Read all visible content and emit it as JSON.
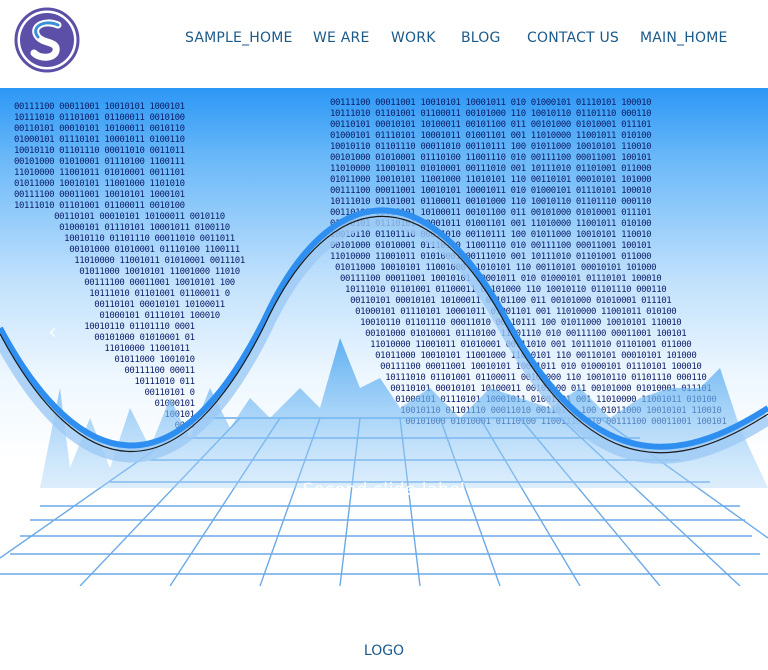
{
  "header": {
    "logo_icon": "s-circle-logo-icon",
    "nav": [
      {
        "label": "SAMPLE_HOME"
      },
      {
        "label": "WE ARE"
      },
      {
        "label": "WORK"
      },
      {
        "label": "BLOG"
      },
      {
        "label": "CONTACT US"
      },
      {
        "label": "MAIN_HOME"
      }
    ]
  },
  "carousel": {
    "prev_icon": "chevron-left-icon",
    "slide_label": "Second slide label",
    "slide_caption": "",
    "binary_rows": [
      "00111100 00011001 10010101 10001011 010",
      "10111010 01101001 01100011 00101000 110",
      "00110101 00010101 10100011 00101100 011",
      "01000101 01110101 10001011 01001101 001",
      "10010110 01101110 00011010 00110111 100",
      "00101000 01010001 01110100 11001110 010",
      "11010000 11001011 01010001 00111010 001",
      "01011000 10010101 11001000 11010101 110"
    ]
  },
  "footer": {
    "logo_text": "LOGO"
  },
  "colors": {
    "nav_text": "#1c5a8a",
    "sky_top": "#2c97f5",
    "wave": "#2f8ff0"
  }
}
